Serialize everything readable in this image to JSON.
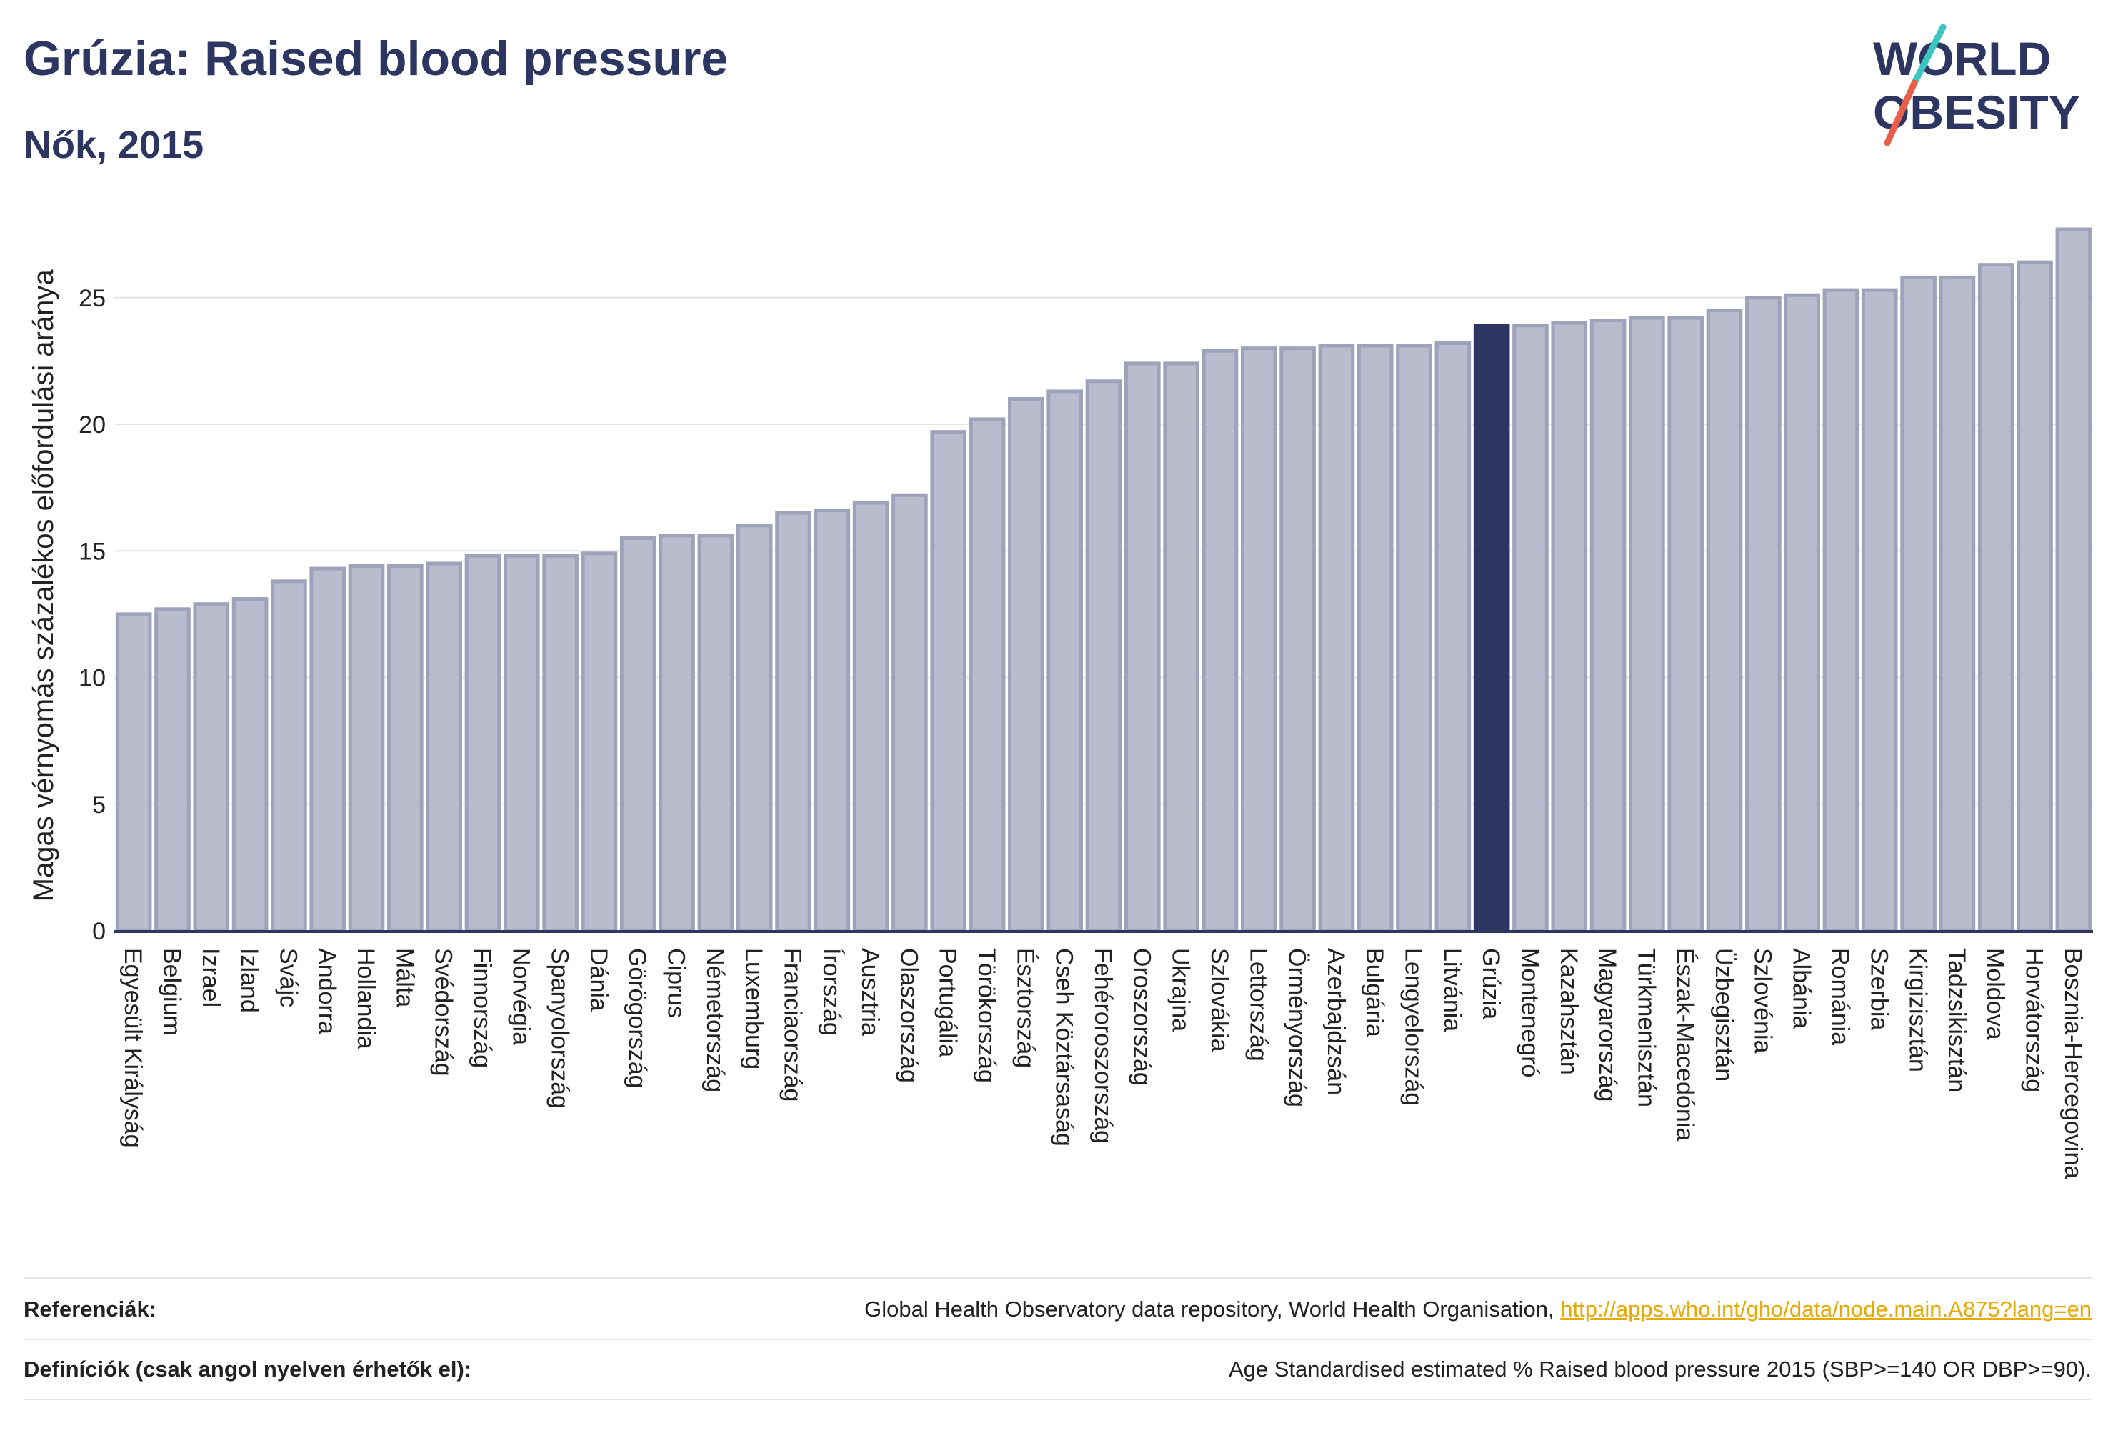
{
  "header": {
    "title": "Grúzia: Raised blood pressure",
    "subtitle": "Nők, 2015"
  },
  "logo": {
    "line1": "WORLD",
    "line2": "OBESITY",
    "accent_colors": [
      "#3cc6c1",
      "#e8604c"
    ]
  },
  "colors": {
    "bar": "#b8bccd",
    "bar_stroke": "#9ea3b9",
    "highlight": "#2d3561",
    "grid": "#e6e6e6",
    "axis": "#2d3561"
  },
  "chart_data": {
    "type": "bar",
    "title": "Grúzia: Raised blood pressure",
    "subtitle": "Nők, 2015",
    "xlabel": "",
    "ylabel": "Magas vérnyomás százalékos előfordulási aránya",
    "ylim": [
      0,
      28
    ],
    "yticks": [
      0,
      5,
      10,
      15,
      20,
      25
    ],
    "grid": true,
    "highlight": "Grúzia",
    "categories": [
      "Egyesült Királyság",
      "Belgium",
      "Izrael",
      "Izland",
      "Svájc",
      "Andorra",
      "Hollandia",
      "Málta",
      "Svédország",
      "Finnország",
      "Norvégia",
      "Spanyolország",
      "Dánia",
      "Görögország",
      "Ciprus",
      "Németország",
      "Luxemburg",
      "Franciaország",
      "Írország",
      "Ausztria",
      "Olaszország",
      "Portugália",
      "Törökország",
      "Észtország",
      "Cseh Köztársaság",
      "Fehéroroszország",
      "Oroszország",
      "Ukrajna",
      "Szlovákia",
      "Lettország",
      "Örményország",
      "Azerbajdzsán",
      "Bulgária",
      "Lengyelország",
      "Litvánia",
      "Grúzia",
      "Montenegró",
      "Kazahsztán",
      "Magyarország",
      "Türkmenisztán",
      "Észak-Macedónia",
      "Üzbegisztán",
      "Szlovénia",
      "Albánia",
      "Románia",
      "Szerbia",
      "Kirgizisztán",
      "Tadzsikisztán",
      "Moldova",
      "Horvátország",
      "Bosznia-Hercegovina"
    ],
    "values": [
      12.5,
      12.7,
      12.9,
      13.1,
      13.8,
      14.3,
      14.4,
      14.4,
      14.5,
      14.8,
      14.8,
      14.8,
      14.9,
      15.5,
      15.6,
      15.6,
      16.0,
      16.5,
      16.6,
      16.9,
      17.2,
      19.7,
      20.2,
      21.0,
      21.3,
      21.7,
      22.4,
      22.4,
      22.9,
      23.0,
      23.0,
      23.1,
      23.1,
      23.1,
      23.2,
      23.9,
      23.9,
      24.0,
      24.1,
      24.2,
      24.2,
      24.5,
      25.0,
      25.1,
      25.3,
      25.3,
      25.8,
      25.8,
      26.3,
      26.4,
      27.7
    ]
  },
  "references": {
    "label": "Referenciák:",
    "text": "Global Health Observatory data repository, World Health Organisation,",
    "link": "http://apps.who.int/gho/data/node.main.A875?lang=en"
  },
  "definitions": {
    "label": "Definíciók (csak angol nyelven érhetők el):",
    "text": "Age Standardised estimated % Raised blood pressure 2015 (SBP>=140 OR DBP>=90)."
  }
}
